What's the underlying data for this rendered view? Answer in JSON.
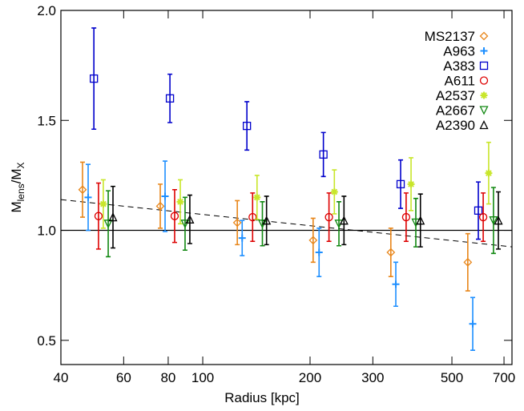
{
  "chart_data": {
    "type": "scatter",
    "xlabel": "Radius [kpc]",
    "ylabel": [
      "M",
      "lens",
      "/M",
      "X"
    ],
    "xscale": "log",
    "xlim": [
      40,
      737
    ],
    "ylim": [
      0.39,
      2.0
    ],
    "xticks": [
      40,
      60,
      80,
      100,
      200,
      300,
      500,
      700
    ],
    "yticks": [
      0.5,
      {
        "value": 1.0,
        "label": "1.0"
      },
      1.5,
      {
        "value": 2.0,
        "label": "2.0"
      }
    ],
    "reference_line": {
      "y": 1.0,
      "color": "#000000"
    },
    "fit_line": {
      "x": [
        40,
        737
      ],
      "y": [
        1.14,
        0.925
      ],
      "color": "#000000"
    },
    "legend": "upper right",
    "series": [
      {
        "name": "MS2137",
        "color": "#e8861a",
        "marker": "diamond",
        "x": [
          46,
          76,
          125,
          204,
          337,
          554
        ],
        "values": [
          1.185,
          1.11,
          1.035,
          0.955,
          0.9,
          0.855
        ],
        "errors": [
          0.125,
          0.1,
          0.1,
          0.1,
          0.11,
          0.13
        ]
      },
      {
        "name": "A963",
        "color": "#1e8fff",
        "marker": "plus",
        "x": [
          47.7,
          78.4,
          129,
          212,
          348,
          572
        ],
        "values": [
          1.15,
          1.155,
          0.965,
          0.9,
          0.755,
          0.575
        ],
        "errors": [
          0.15,
          0.16,
          0.08,
          0.11,
          0.1,
          0.12
        ]
      },
      {
        "name": "A383",
        "color": "#0000cc",
        "marker": "square",
        "x": [
          49.5,
          80.9,
          133,
          218,
          359,
          593
        ],
        "values": [
          1.69,
          1.6,
          1.475,
          1.345,
          1.21,
          1.09
        ],
        "errors": [
          0.23,
          0.11,
          0.11,
          0.1,
          0.11,
          0.13
        ]
      },
      {
        "name": "A611",
        "color": "#dd0000",
        "marker": "circle",
        "x": [
          51,
          83.4,
          138,
          226,
          372,
          612
        ],
        "values": [
          1.065,
          1.065,
          1.06,
          1.06,
          1.06,
          1.06
        ],
        "errors": [
          0.15,
          0.12,
          0.11,
          0.11,
          0.11,
          0.11
        ]
      },
      {
        "name": "A2537",
        "color": "#c8e62a",
        "marker": "asterisk",
        "x": [
          52.6,
          86.5,
          142,
          234,
          384,
          634
        ],
        "values": [
          1.12,
          1.13,
          1.15,
          1.175,
          1.21,
          1.26
        ],
        "errors": [
          0.11,
          0.1,
          0.1,
          0.1,
          0.12,
          0.14
        ]
      },
      {
        "name": "A2667",
        "color": "#118811",
        "marker": "triangle-down",
        "x": [
          54.3,
          89.2,
          147,
          241,
          396,
          654
        ],
        "values": [
          1.03,
          1.03,
          1.03,
          1.03,
          1.035,
          1.045
        ],
        "errors": [
          0.15,
          0.12,
          0.1,
          0.1,
          0.11,
          0.15
        ]
      },
      {
        "name": "A2390",
        "color": "#000000",
        "marker": "triangle-up",
        "x": [
          56,
          92,
          151,
          249,
          408,
          675
        ],
        "values": [
          1.06,
          1.05,
          1.045,
          1.045,
          1.045,
          1.045
        ],
        "errors": [
          0.14,
          0.11,
          0.11,
          0.11,
          0.12,
          0.13
        ]
      }
    ]
  }
}
